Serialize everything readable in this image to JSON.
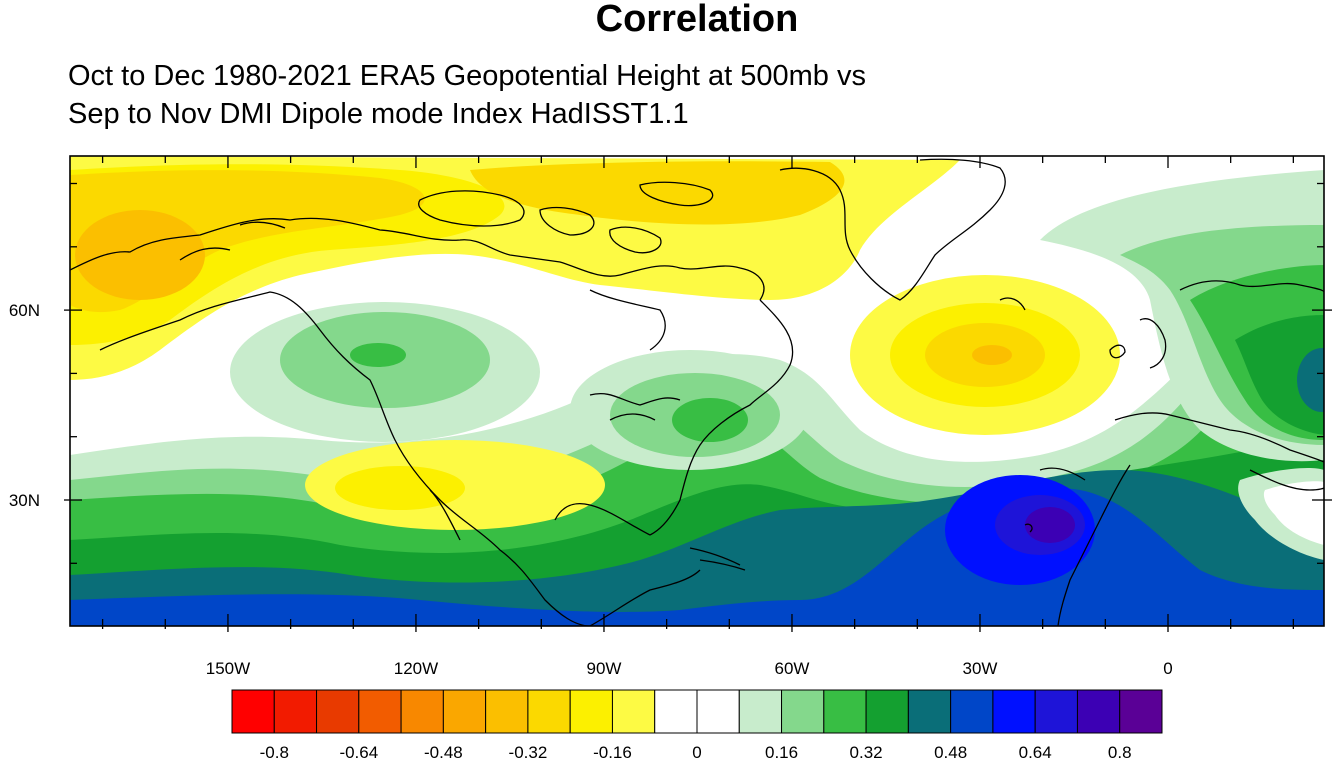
{
  "title": "Correlation",
  "subtitle_line1": "Oct to Dec 1980-2021 ERA5 Geopotential Height at 500mb vs",
  "subtitle_line2": "Sep to Nov DMI Dipole mode Index HadISST1.1",
  "map": {
    "lon_ticks": [
      {
        "lon": -150,
        "label": "150W"
      },
      {
        "lon": -120,
        "label": "120W"
      },
      {
        "lon": -90,
        "label": "90W"
      },
      {
        "lon": -60,
        "label": "60W"
      },
      {
        "lon": -30,
        "label": "30W"
      },
      {
        "lon": 0,
        "label": "0"
      }
    ],
    "lat_ticks": [
      {
        "lat": 60,
        "label": "60N"
      },
      {
        "lat": 30,
        "label": "30N"
      }
    ],
    "lon_range": [
      -175,
      28
    ],
    "lat_range": [
      10,
      85
    ]
  },
  "colorbar": {
    "colors": [
      "#ff0000",
      "#f21b00",
      "#e83a00",
      "#f25c00",
      "#f88800",
      "#faa700",
      "#fbbf00",
      "#fbd900",
      "#fcf000",
      "#fdfa44",
      "#ffffff",
      "#ffffff",
      "#c8eccc",
      "#84d88c",
      "#38be44",
      "#14a030",
      "#0a6e78",
      "#0046c8",
      "#0010ff",
      "#1e14d8",
      "#3c00b4",
      "#5a0096"
    ],
    "labels": [
      "-0.8",
      "-0.64",
      "-0.48",
      "-0.32",
      "-0.16",
      "0",
      "0.16",
      "0.32",
      "0.48",
      "0.64",
      "0.8"
    ]
  }
}
